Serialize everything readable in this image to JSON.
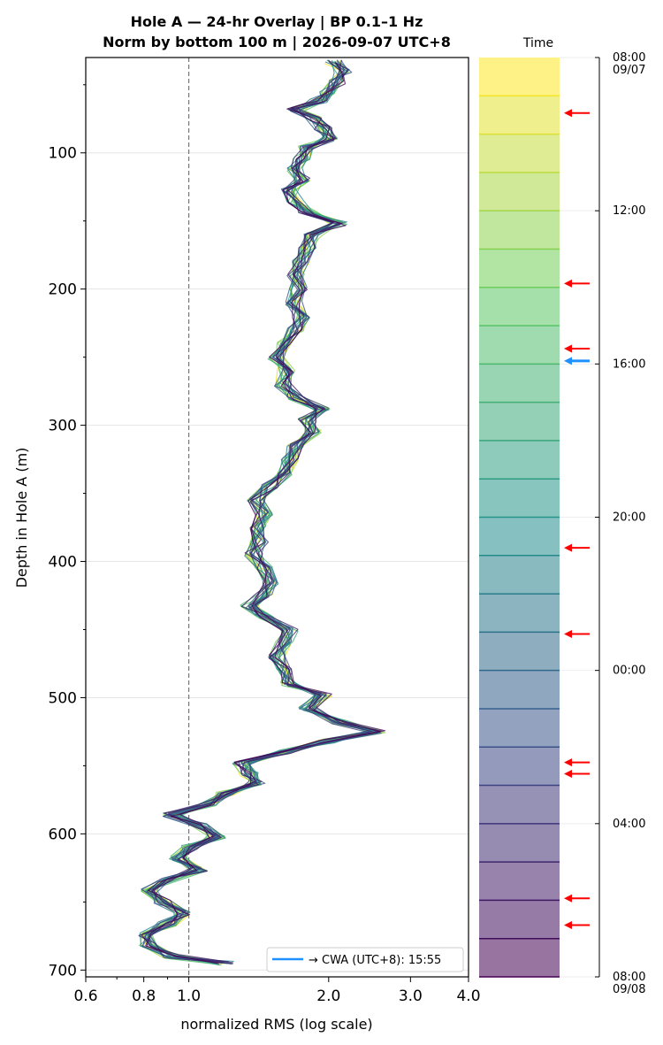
{
  "title_line1": "Hole A — 24-hr Overlay  |  BP 0.1–1 Hz",
  "title_line2": "Norm by bottom 100 m  |  2026-09-07 UTC+8",
  "colorbar_title": "Time",
  "chart_data": {
    "type": "line",
    "xlabel": "normalized RMS  (log scale)",
    "ylabel": "Depth in Hole A (m)",
    "xscale": "log",
    "xlim": [
      0.6,
      4.0
    ],
    "ylim": [
      705,
      30
    ],
    "x_tick_labels": [
      "0.6",
      "0.8",
      "1.0",
      "2.0",
      "3.0",
      "4.0"
    ],
    "y_tick_labels": [
      "100",
      "200",
      "300",
      "400",
      "500",
      "600",
      "700"
    ],
    "reference_line_x": 1.0,
    "grid": true,
    "legend_placement": "bottom-right",
    "legend_label": "→ CWA (UTC+8): 15:55",
    "legend_color": "#1e90ff",
    "n_traces": 24,
    "profile": [
      [
        33,
        2.05
      ],
      [
        40,
        2.15
      ],
      [
        48,
        2.1
      ],
      [
        55,
        2.0
      ],
      [
        62,
        1.9
      ],
      [
        68,
        1.7
      ],
      [
        75,
        1.85
      ],
      [
        82,
        1.95
      ],
      [
        90,
        2.0
      ],
      [
        96,
        1.8
      ],
      [
        104,
        1.75
      ],
      [
        112,
        1.7
      ],
      [
        120,
        1.75
      ],
      [
        128,
        1.65
      ],
      [
        136,
        1.7
      ],
      [
        144,
        1.8
      ],
      [
        152,
        2.1
      ],
      [
        160,
        1.85
      ],
      [
        170,
        1.8
      ],
      [
        180,
        1.75
      ],
      [
        190,
        1.7
      ],
      [
        200,
        1.72
      ],
      [
        210,
        1.68
      ],
      [
        220,
        1.75
      ],
      [
        230,
        1.7
      ],
      [
        240,
        1.6
      ],
      [
        250,
        1.55
      ],
      [
        260,
        1.62
      ],
      [
        270,
        1.6
      ],
      [
        280,
        1.7
      ],
      [
        288,
        1.95
      ],
      [
        296,
        1.8
      ],
      [
        305,
        1.85
      ],
      [
        315,
        1.7
      ],
      [
        325,
        1.65
      ],
      [
        335,
        1.6
      ],
      [
        345,
        1.5
      ],
      [
        355,
        1.4
      ],
      [
        365,
        1.45
      ],
      [
        375,
        1.4
      ],
      [
        385,
        1.42
      ],
      [
        395,
        1.38
      ],
      [
        405,
        1.45
      ],
      [
        415,
        1.5
      ],
      [
        425,
        1.45
      ],
      [
        433,
        1.35
      ],
      [
        440,
        1.45
      ],
      [
        450,
        1.65
      ],
      [
        460,
        1.6
      ],
      [
        470,
        1.55
      ],
      [
        480,
        1.6
      ],
      [
        490,
        1.65
      ],
      [
        498,
        1.95
      ],
      [
        508,
        1.8
      ],
      [
        518,
        2.1
      ],
      [
        525,
        2.55
      ],
      [
        532,
        2.0
      ],
      [
        540,
        1.6
      ],
      [
        548,
        1.3
      ],
      [
        556,
        1.35
      ],
      [
        563,
        1.4
      ],
      [
        570,
        1.2
      ],
      [
        578,
        1.1
      ],
      [
        586,
        0.92
      ],
      [
        594,
        1.05
      ],
      [
        602,
        1.15
      ],
      [
        610,
        1.0
      ],
      [
        618,
        0.95
      ],
      [
        626,
        1.05
      ],
      [
        634,
        0.9
      ],
      [
        642,
        0.82
      ],
      [
        650,
        0.88
      ],
      [
        658,
        0.97
      ],
      [
        666,
        0.9
      ],
      [
        674,
        0.8
      ],
      [
        682,
        0.82
      ],
      [
        690,
        0.92
      ],
      [
        695,
        1.2
      ]
    ],
    "colorbar": {
      "label": "Time",
      "tick_labels": [
        "08:00\n09/07",
        "12:00",
        "16:00",
        "20:00",
        "00:00",
        "04:00",
        "08:00\n09/08"
      ],
      "n_bins": 24,
      "event_arrows_hours": [
        1.45,
        5.9,
        7.6,
        12.8,
        15.05,
        18.4,
        18.7,
        21.95,
        22.65
      ],
      "event_arrow_color": "#ff0000",
      "cwa_arrow_hour": 7.92,
      "cwa_arrow_color": "#1e90ff"
    }
  }
}
